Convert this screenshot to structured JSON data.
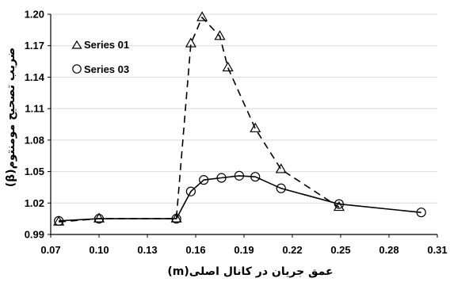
{
  "chart_data": {
    "type": "line",
    "xlabel": "عمق جریان در کانال اصلی(m)",
    "ylabel": "ضریب تصحیح مومنتوم(β)",
    "xlim": [
      0.07,
      0.31
    ],
    "ylim": [
      0.99,
      1.2
    ],
    "xticks": [
      0.07,
      0.1,
      0.13,
      0.16,
      0.19,
      0.22,
      0.25,
      0.28,
      0.31
    ],
    "yticks": [
      0.99,
      1.02,
      1.05,
      1.08,
      1.11,
      1.14,
      1.17,
      1.2
    ],
    "grid": "horizontal",
    "legend_position": "top-left",
    "series": [
      {
        "name": "Series 01",
        "marker": "triangle",
        "line": "dashed",
        "x": [
          0.075,
          0.1,
          0.148,
          0.157,
          0.164,
          0.175,
          0.18,
          0.197,
          0.213,
          0.249
        ],
        "y": [
          1.002,
          1.005,
          1.005,
          1.172,
          1.197,
          1.179,
          1.149,
          1.091,
          1.052,
          1.016
        ]
      },
      {
        "name": "Series 03",
        "marker": "circle",
        "line": "solid",
        "x": [
          0.075,
          0.1,
          0.148,
          0.157,
          0.165,
          0.176,
          0.187,
          0.197,
          0.213,
          0.249,
          0.3
        ],
        "y": [
          1.003,
          1.005,
          1.005,
          1.031,
          1.042,
          1.044,
          1.046,
          1.045,
          1.034,
          1.019,
          1.011
        ]
      }
    ]
  },
  "colors": {
    "axis": "#000000",
    "grid": "#d9d9d9",
    "series": "#000000"
  }
}
